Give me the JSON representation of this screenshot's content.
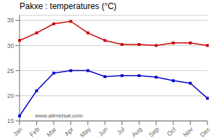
{
  "chart_data": {
    "type": "line",
    "title": "Pakxe : temperatures (°C)",
    "categories": [
      "Jan",
      "Feb",
      "Mar",
      "Apr",
      "May",
      "Jun",
      "Jul",
      "Aug",
      "Sep",
      "Oct",
      "Nov",
      "Dec"
    ],
    "series": [
      {
        "color": "#cc0000",
        "marker": "square",
        "values": [
          31.0,
          32.5,
          34.3,
          34.8,
          32.5,
          31.0,
          30.2,
          30.2,
          30.0,
          30.5,
          30.5,
          30.0
        ]
      },
      {
        "color": "#0000cc",
        "marker": "square",
        "values": [
          16.0,
          21.0,
          24.5,
          25.0,
          25.0,
          23.8,
          24.0,
          24.0,
          23.7,
          23.0,
          22.5,
          19.5
        ]
      }
    ],
    "ylim": [
      15,
      36
    ],
    "yticks": [
      15,
      20,
      25,
      30,
      35
    ],
    "grid": true,
    "annotations": [
      "www.allmetsat.com"
    ]
  }
}
